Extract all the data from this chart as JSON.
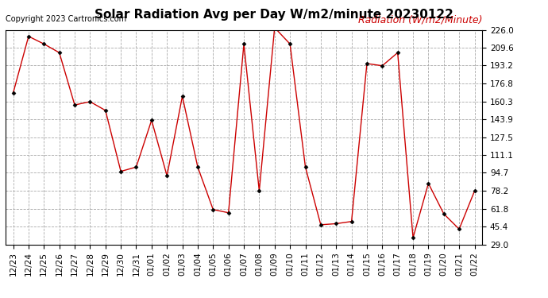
{
  "title": "Solar Radiation Avg per Day W/m2/minute 20230122",
  "copyright": "Copyright 2023 Cartronics.com",
  "legend_label": "Radiation (W/m2/Minute)",
  "labels": [
    "12/23",
    "12/24",
    "12/25",
    "12/26",
    "12/27",
    "12/28",
    "12/29",
    "12/30",
    "12/31",
    "01/01",
    "01/02",
    "01/03",
    "01/04",
    "01/05",
    "01/06",
    "01/07",
    "01/08",
    "01/09",
    "01/10",
    "01/11",
    "01/12",
    "01/13",
    "01/14",
    "01/15",
    "01/16",
    "01/17",
    "01/18",
    "01/19",
    "01/20",
    "01/21",
    "01/22"
  ],
  "values": [
    168,
    220,
    213,
    205,
    157,
    160,
    152,
    96,
    100,
    143,
    92,
    165,
    100,
    61,
    58,
    213,
    78,
    228,
    213,
    100,
    47,
    48,
    50,
    195,
    193,
    205,
    35,
    85,
    57,
    43,
    78
  ],
  "line_color": "#cc0000",
  "marker": "D",
  "marker_size": 2.5,
  "background_color": "#ffffff",
  "grid_color": "#aaaaaa",
  "ylim_min": 29.0,
  "ylim_max": 226.0,
  "yticks": [
    29.0,
    45.4,
    61.8,
    78.2,
    94.7,
    111.1,
    127.5,
    143.9,
    160.3,
    176.8,
    193.2,
    209.6,
    226.0
  ],
  "title_fontsize": 11,
  "copyright_fontsize": 7,
  "legend_fontsize": 9,
  "tick_fontsize": 7.5
}
